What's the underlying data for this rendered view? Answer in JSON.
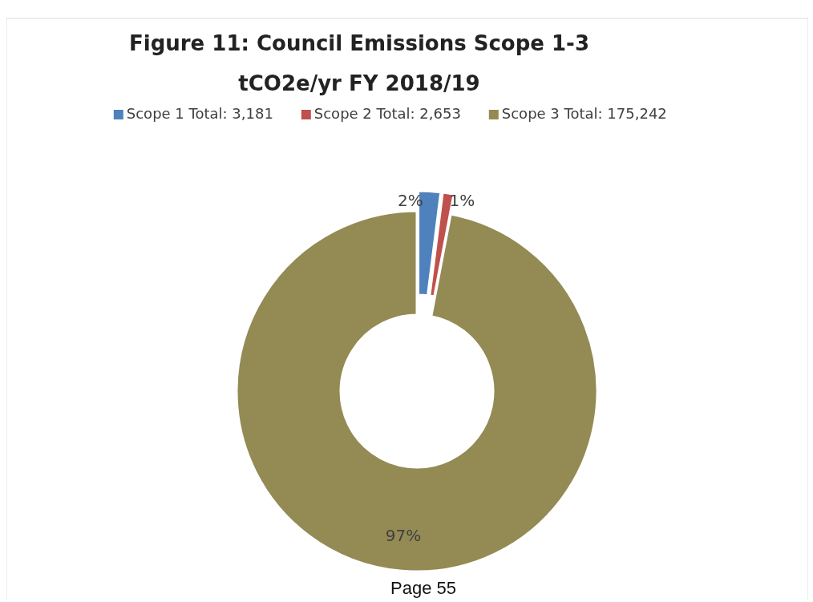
{
  "chart_data": {
    "type": "donut",
    "title": "Figure 11: Council Emissions Scope 1-3",
    "subtitle": "tCO2e/yr FY 2018/19",
    "categories": [
      "Scope 1 Total: 3,181",
      "Scope 2 Total: 2,653",
      "Scope 3 Total: 175,242"
    ],
    "values": [
      2,
      1,
      97
    ],
    "colors": [
      "#4f81bd",
      "#c0504d",
      "#948a54"
    ],
    "value_labels": [
      "2%",
      "1%",
      "97%"
    ],
    "legend": "top",
    "annotations": [
      "Page 55"
    ]
  }
}
